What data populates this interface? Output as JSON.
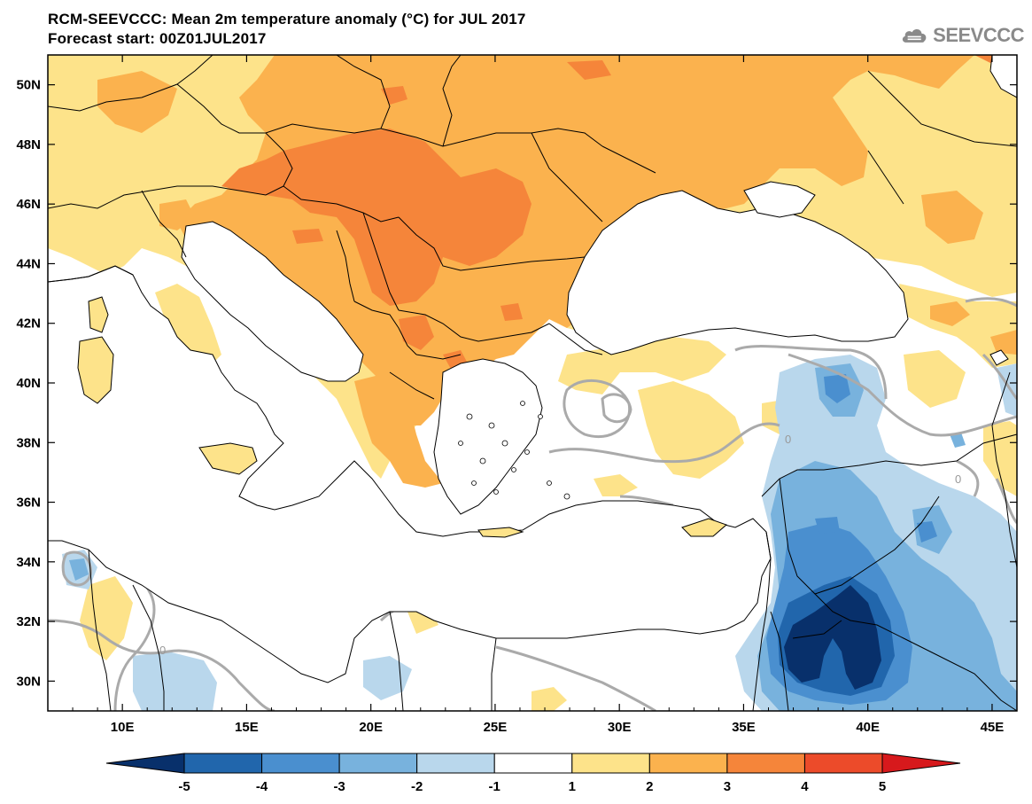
{
  "header": {
    "title": "RCM-SEEVCCC: Mean 2m temperature anomaly (°C) for JUL 2017",
    "subtitle": "Forecast start: 00Z01JUL2017",
    "logo_text": "SEEVCCC"
  },
  "map": {
    "lon_ticks": [
      "10E",
      "15E",
      "20E",
      "25E",
      "30E",
      "35E",
      "40E",
      "45E"
    ],
    "lat_ticks": [
      "50N",
      "48N",
      "46N",
      "44N",
      "42N",
      "40N",
      "38N",
      "36N",
      "34N",
      "32N",
      "30N"
    ],
    "contour_label": "0",
    "region": "South-East Europe and Eastern Mediterranean",
    "lon_range": [
      7,
      46
    ],
    "lat_range": [
      29,
      51
    ]
  },
  "colorbar": {
    "labels": [
      "-5",
      "-4",
      "-3",
      "-2",
      "-1",
      "1",
      "2",
      "3",
      "4",
      "5"
    ],
    "colors": [
      "#08306b",
      "#2166ac",
      "#4a8fcf",
      "#78b2dd",
      "#b9d7ec",
      "#ffffff",
      "#fde38a",
      "#fbb24e",
      "#f5853a",
      "#ec4b2a",
      "#d7191c"
    ]
  }
}
